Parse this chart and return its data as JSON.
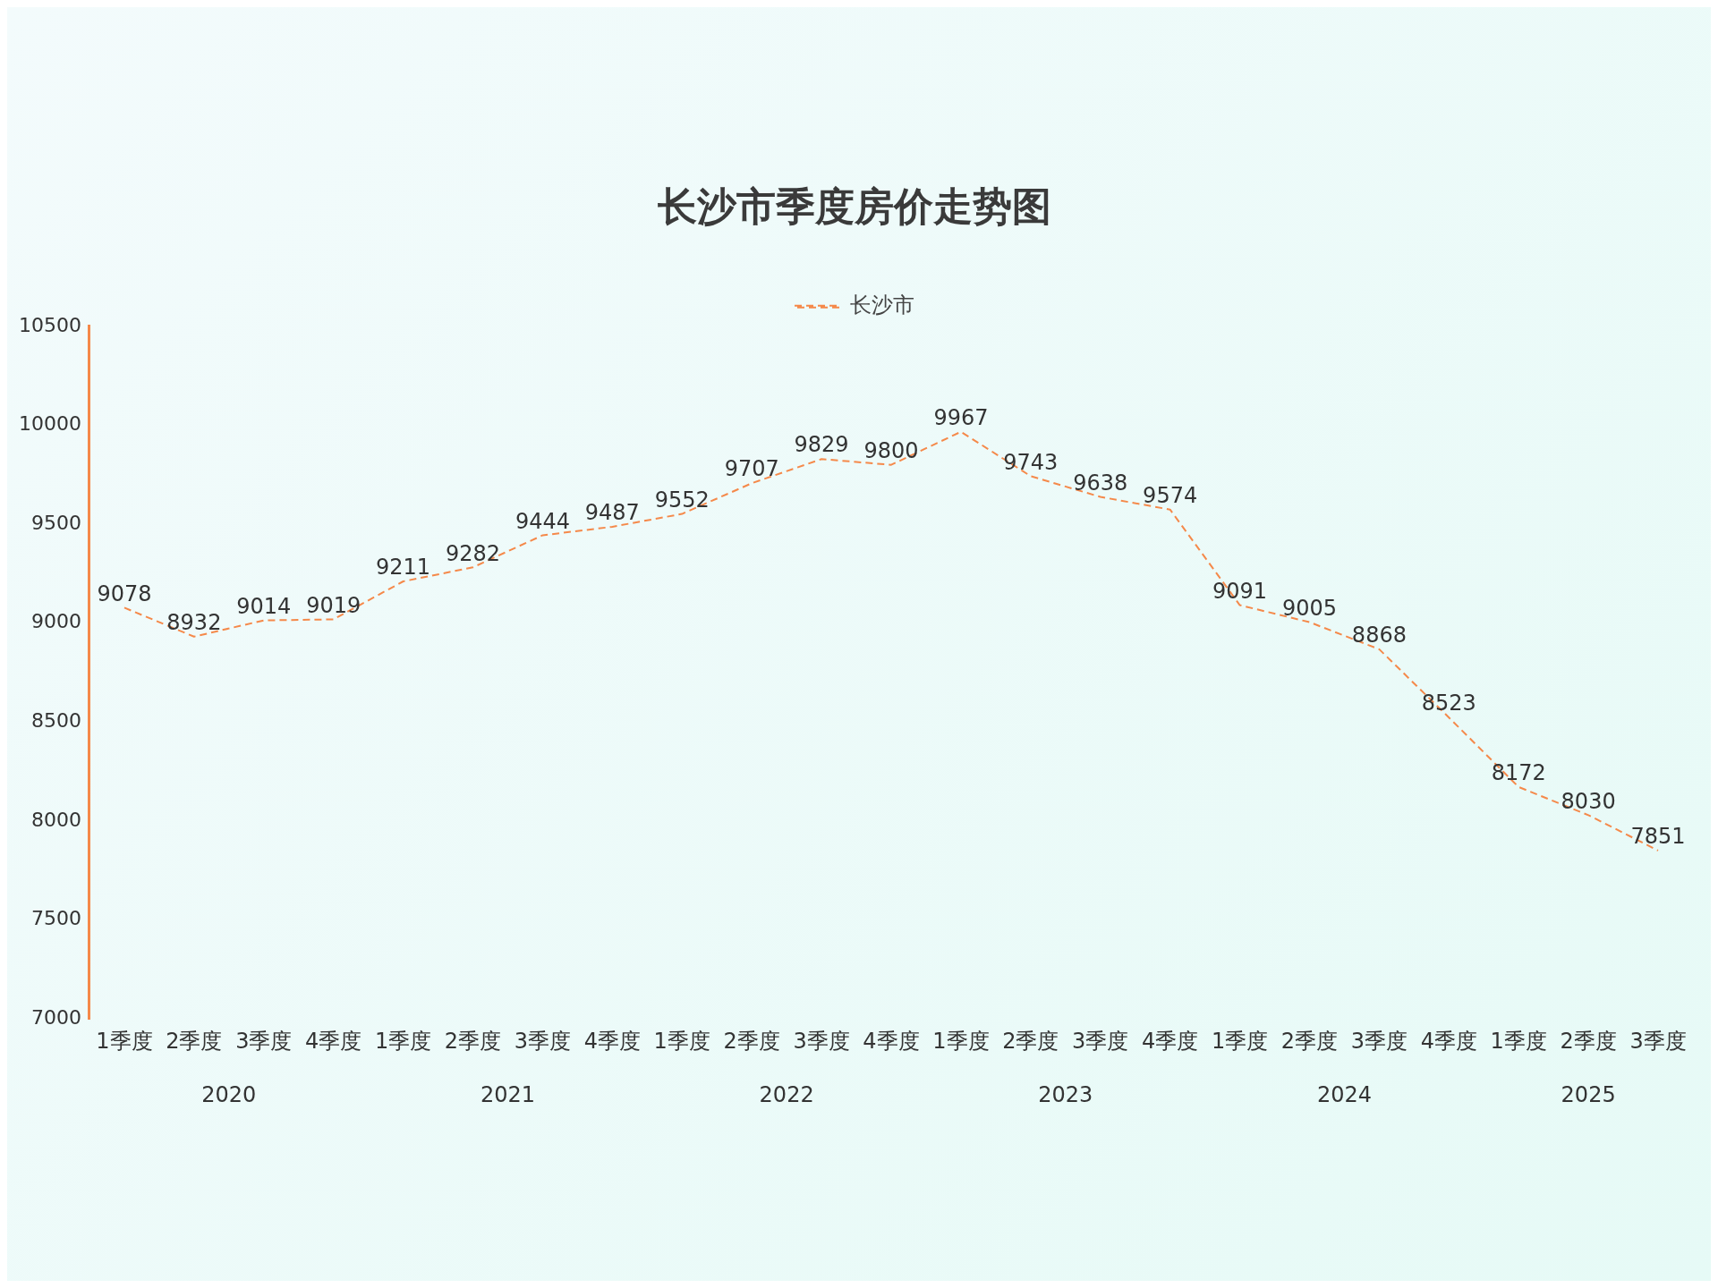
{
  "chart_data": {
    "type": "line",
    "title": "长沙市季度房价走势图",
    "categories": [
      "1季度",
      "2季度",
      "3季度",
      "4季度",
      "1季度",
      "2季度",
      "3季度",
      "4季度",
      "1季度",
      "2季度",
      "3季度",
      "4季度",
      "1季度",
      "2季度",
      "3季度",
      "4季度",
      "1季度",
      "2季度",
      "3季度",
      "4季度",
      "1季度",
      "2季度",
      "3季度"
    ],
    "series": [
      {
        "name": "长沙市",
        "color": "#f5894a",
        "values": [
          9078,
          8932,
          9014,
          9019,
          9211,
          9282,
          9444,
          9487,
          9552,
          9707,
          9829,
          9800,
          9967,
          9743,
          9638,
          9574,
          9091,
          9005,
          8868,
          8523,
          8172,
          8030,
          7851
        ]
      }
    ],
    "annotations": [
      "2020",
      "2021",
      "2022",
      "2023",
      "2024",
      "2025"
    ],
    "ylim": [
      7000,
      10500
    ],
    "yticks": [
      7000,
      7500,
      8000,
      8500,
      9000,
      9500,
      10000,
      10500
    ],
    "grid": false,
    "legend": "top",
    "marker": "none",
    "line_style": "dashed",
    "data_labels": true
  }
}
